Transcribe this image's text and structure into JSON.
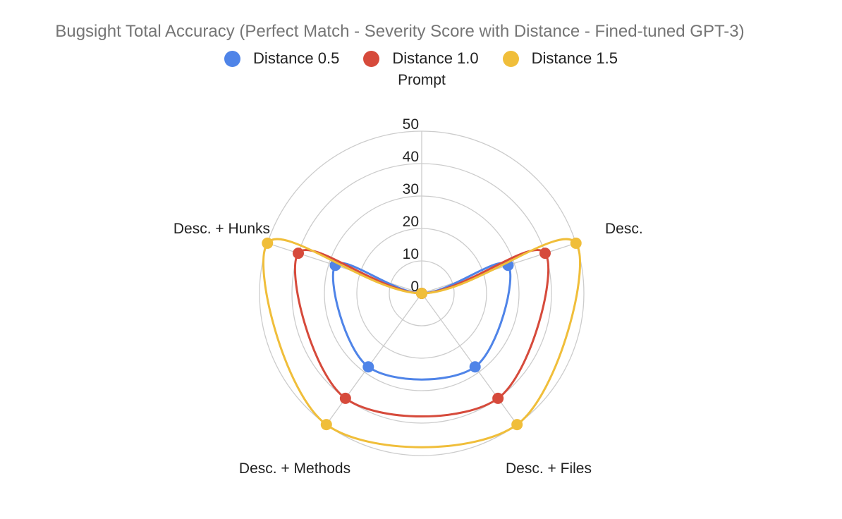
{
  "chart_data": {
    "type": "radar",
    "title": "Bugsight Total Accuracy (Perfect Match - Severity Score with Distance - Fined-tuned GPT-3)",
    "axis_title": "Prompt",
    "categories": [
      "Prompt",
      "Desc.",
      "Desc. + Files",
      "Desc. + Methods",
      "Desc. + Hunks"
    ],
    "rlim": [
      0,
      50
    ],
    "ticks": [
      0,
      10,
      20,
      30,
      40,
      50
    ],
    "tick_labels": [
      "0",
      "10",
      "20",
      "30",
      "40",
      "50"
    ],
    "grid": true,
    "legend_position": "top",
    "series": [
      {
        "name": "Distance 0.5",
        "color": "#4f84e8",
        "values": [
          0,
          28,
          28,
          28,
          28
        ]
      },
      {
        "name": "Distance 1.0",
        "color": "#d64a3b",
        "values": [
          0,
          40,
          40,
          40,
          40
        ]
      },
      {
        "name": "Distance 1.5",
        "color": "#f0be3a",
        "values": [
          0,
          50,
          50,
          50,
          50
        ]
      }
    ]
  }
}
